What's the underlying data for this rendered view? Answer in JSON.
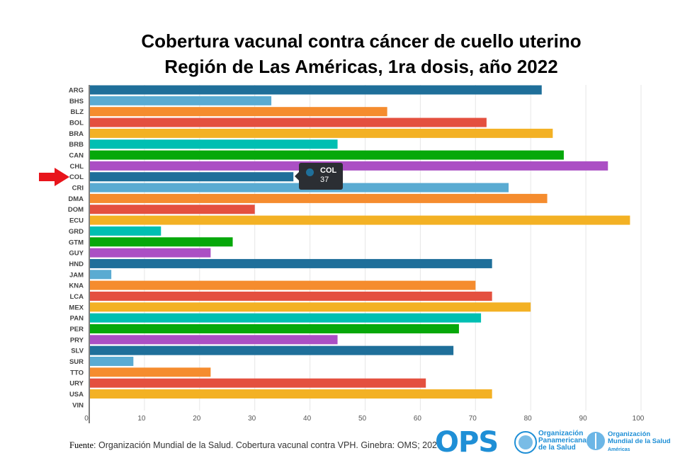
{
  "chart_data": {
    "type": "bar",
    "orientation": "horizontal",
    "title": "Cobertura vacunal contra cáncer de cuello uterino",
    "subtitle": "Región de Las Américas, 1ra dosis, año 2022",
    "categories": [
      "ARG",
      "BHS",
      "BLZ",
      "BOL",
      "BRA",
      "BRB",
      "CAN",
      "CHL",
      "COL",
      "CRI",
      "DMA",
      "DOM",
      "ECU",
      "GRD",
      "GTM",
      "GUY",
      "HND",
      "JAM",
      "KNA",
      "LCA",
      "MEX",
      "PAN",
      "PER",
      "PRY",
      "SLV",
      "SUR",
      "TTO",
      "URY",
      "USA",
      "VIN"
    ],
    "values": [
      82,
      33,
      54,
      72,
      84,
      45,
      86,
      94,
      37,
      76,
      83,
      30,
      98,
      13,
      26,
      22,
      73,
      4,
      70,
      73,
      80,
      71,
      67,
      45,
      66,
      8,
      22,
      61,
      73,
      0
    ],
    "xlim": [
      0,
      100
    ],
    "xticks": [
      0,
      10,
      20,
      30,
      40,
      50,
      60,
      70,
      80,
      90,
      100
    ],
    "grid": true,
    "colors": [
      "#1f6f9a",
      "#5aabd2",
      "#f58c2e",
      "#e4503f",
      "#f3b124",
      "#00bfb2",
      "#06a80a",
      "#ab4fc4"
    ],
    "highlight": {
      "category": "COL",
      "marker": "red-arrow"
    },
    "tooltip": {
      "label": "COL",
      "value": "37"
    }
  },
  "source": {
    "label": "Fuente",
    "text": ": Organización Mundial de la Salud. Cobertura vacunal contra VPH. Ginebra: OMS; 2023."
  },
  "logos": {
    "ops": "OPS",
    "paho": [
      "Organización",
      "Panamericana",
      "de la Salud"
    ],
    "who": [
      "Organización",
      "Mundial de la Salud"
    ],
    "who_sub": "Américas"
  }
}
